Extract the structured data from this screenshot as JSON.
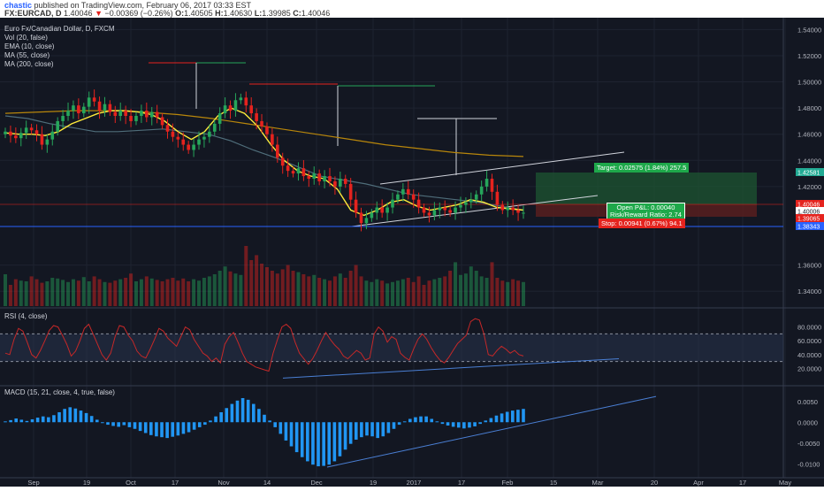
{
  "header": {
    "author": "chastic",
    "published_text": "published on TradingView.com, February 06, 2017 03:33 EST",
    "symbol": "FX:EURCAD, D",
    "last": "1.40046",
    "change": "−0.00369 (−0.26%)",
    "open_label": "O:",
    "open": "1.40505",
    "high_label": "H:",
    "high": "1.40630",
    "low_label": "L:",
    "low": "1.39985",
    "close_label": "C:",
    "close": "1.40046"
  },
  "legend": {
    "title": "Euro Fx/Canadian Dollar, D, FXCM",
    "vol": "Vol (20, false)",
    "ema": "EMA (10, close)",
    "ma55": "MA (55, close)",
    "ma200": "MA (200, close)"
  },
  "rsi_legend": "RSI (4, close)",
  "macd_legend": "MACD (15, 21, close, 4, true, false)",
  "trade_boxes": {
    "target": "Target: 0.02575 (1.84%) 257.5",
    "pnl": "Open P&L: 0.00040",
    "rr": "Risk/Reward Ratio: 2.74",
    "stop": "Stop: 0.00941 (0.67%) 94.1"
  },
  "price_labels": [
    {
      "text": "1.42581",
      "bg": "#22ab94"
    },
    {
      "text": "1.40046",
      "bg": "#e5231e"
    },
    {
      "text": "1.40006",
      "bg": "#ffffff"
    },
    {
      "text": "1.39065",
      "bg": "#e5231e"
    },
    {
      "text": "1.38343",
      "bg": "#2962ff"
    }
  ],
  "time_axis": [
    "Sep",
    "19",
    "Oct",
    "17",
    "Nov",
    "14",
    "Dec",
    "19",
    "2017",
    "17",
    "Feb",
    "15",
    "Mar",
    "20",
    "Apr",
    "17",
    "May"
  ],
  "colors": {
    "background": "#131722",
    "up": "#26a65b",
    "down": "#e5231e",
    "ema": "#ffeb3b",
    "ma55": "#4f6d7a",
    "ma200": "#b8860b",
    "rsi": "#c62828",
    "macd": "#2196f3",
    "trendline": "#d1d4dc"
  },
  "chart_data": [
    {
      "type": "candlestick",
      "title": "Euro Fx/Canadian Dollar, D, FXCM",
      "ylim": [
        1.33,
        1.545
      ],
      "yticks": [
        "1.54000",
        "1.52000",
        "1.50000",
        "1.48000",
        "1.46000",
        "1.44000",
        "1.42000",
        "1.36000",
        "1.34000"
      ],
      "close_approx": [
        1.462,
        1.459,
        1.457,
        1.461,
        1.465,
        1.463,
        1.46,
        1.452,
        1.456,
        1.462,
        1.47,
        1.474,
        1.478,
        1.482,
        1.476,
        1.481,
        1.488,
        1.485,
        1.478,
        1.483,
        1.477,
        1.474,
        1.478,
        1.474,
        1.47,
        1.474,
        1.478,
        1.473,
        1.477,
        1.473,
        1.467,
        1.462,
        1.458,
        1.456,
        1.452,
        1.448,
        1.452,
        1.456,
        1.458,
        1.462,
        1.468,
        1.476,
        1.482,
        1.478,
        1.486,
        1.488,
        1.482,
        1.476,
        1.47,
        1.466,
        1.46,
        1.452,
        1.442,
        1.436,
        1.432,
        1.43,
        1.434,
        1.428,
        1.426,
        1.43,
        1.424,
        1.428,
        1.424,
        1.42,
        1.426,
        1.422,
        1.41,
        1.4,
        1.392,
        1.396,
        1.4,
        1.404,
        1.4,
        1.404,
        1.41,
        1.414,
        1.418,
        1.414,
        1.41,
        1.404,
        1.4,
        1.398,
        1.402,
        1.404,
        1.402,
        1.4,
        1.404,
        1.406,
        1.408,
        1.41,
        1.414,
        1.42,
        1.426,
        1.416,
        1.406,
        1.402,
        1.404,
        1.402,
        1.4,
        1.4
      ],
      "ema10_approx": [
        1.461,
        1.46,
        1.46,
        1.459,
        1.462,
        1.468,
        1.472,
        1.476,
        1.478,
        1.478,
        1.477,
        1.475,
        1.47,
        1.462,
        1.456,
        1.462,
        1.474,
        1.48,
        1.476,
        1.466,
        1.452,
        1.44,
        1.432,
        1.428,
        1.426,
        1.418,
        1.402,
        1.398,
        1.402,
        1.408,
        1.41,
        1.405,
        1.402,
        1.404,
        1.406,
        1.41,
        1.408,
        1.404,
        1.403,
        1.402
      ],
      "ma55_approx": [
        1.474,
        1.472,
        1.468,
        1.465,
        1.462,
        1.462,
        1.463,
        1.464,
        1.462,
        1.46,
        1.455,
        1.448,
        1.442,
        1.435,
        1.428,
        1.425,
        1.422,
        1.418,
        1.414,
        1.412,
        1.41,
        1.408,
        1.405,
        1.402
      ],
      "ma200_approx": [
        1.476,
        1.477,
        1.478,
        1.478,
        1.477,
        1.475,
        1.472,
        1.468,
        1.464,
        1.46,
        1.456,
        1.452,
        1.449,
        1.446,
        1.444,
        1.443
      ],
      "annotations": [
        "Target: 0.02575 (1.84%) 257.5",
        "Open P&L: 0.00040",
        "Risk/Reward Ratio: 2.74",
        "Stop: 0.00941 (0.67%) 94.1"
      ]
    },
    {
      "type": "bar",
      "title": "Vol (20, false)",
      "values_relative": [
        0.45,
        0.3,
        0.38,
        0.36,
        0.35,
        0.42,
        0.38,
        0.33,
        0.35,
        0.4,
        0.39,
        0.37,
        0.34,
        0.38,
        0.36,
        0.41,
        0.35,
        0.42,
        0.38,
        0.34,
        0.33,
        0.36,
        0.38,
        0.4,
        0.46,
        0.35,
        0.38,
        0.42,
        0.39,
        0.37,
        0.35,
        0.38,
        0.4,
        0.36,
        0.39,
        0.35,
        0.38,
        0.36,
        0.4,
        0.42,
        0.45,
        0.5,
        0.56,
        0.49,
        0.46,
        0.44,
        0.85,
        0.65,
        0.72,
        0.6,
        0.55,
        0.5,
        0.46,
        0.52,
        0.58,
        0.5,
        0.48,
        0.45,
        0.42,
        0.44,
        0.4,
        0.38,
        0.36,
        0.42,
        0.46,
        0.4,
        0.5,
        0.58,
        0.42,
        0.36,
        0.34,
        0.38,
        0.36,
        0.32,
        0.34,
        0.36,
        0.38,
        0.4,
        0.34,
        0.42,
        0.3,
        0.36,
        0.38,
        0.4,
        0.42,
        0.5,
        0.62,
        0.44,
        0.46,
        0.56,
        0.5,
        0.42,
        0.4,
        0.62,
        0.4,
        0.36,
        0.34,
        0.38,
        0.36,
        0.34
      ]
    },
    {
      "type": "line",
      "title": "RSI (4, close)",
      "ylim": [
        0,
        100
      ],
      "yticks": [
        "80.0000",
        "60.0000",
        "40.0000",
        "20.0000"
      ],
      "values": [
        42,
        40,
        62,
        78,
        74,
        58,
        40,
        35,
        46,
        60,
        75,
        82,
        80,
        68,
        55,
        38,
        45,
        60,
        78,
        84,
        70,
        55,
        40,
        32,
        42,
        66,
        82,
        80,
        68,
        60,
        45,
        38,
        35,
        48,
        62,
        78,
        74,
        64,
        58,
        52,
        66,
        80,
        76,
        62,
        52,
        42,
        38,
        30,
        35,
        28,
        55,
        66,
        72,
        58,
        42,
        30,
        26,
        22,
        20,
        18,
        16,
        42,
        62,
        80,
        84,
        78,
        58,
        42,
        34,
        26,
        34,
        46,
        60,
        72,
        62,
        54,
        48,
        38,
        34,
        40,
        46,
        42,
        32,
        35,
        70,
        80,
        74,
        58,
        66,
        62,
        42,
        36,
        32,
        48,
        62,
        70,
        62,
        50,
        40,
        32,
        28,
        36,
        46,
        56,
        62,
        68,
        88,
        92,
        90,
        70,
        40,
        38,
        46,
        52,
        48,
        42,
        46,
        40,
        38
      ]
    },
    {
      "type": "bar",
      "title": "MACD (15, 21, close, 4, true, false)",
      "ylim": [
        -0.0125,
        0.0075
      ],
      "yticks": [
        "0.0050",
        "0.0000",
        "-0.0050",
        "-0.0100"
      ],
      "values": [
        0.0002,
        0.0005,
        0.0009,
        0.0006,
        0.0003,
        0.0007,
        0.0011,
        0.0014,
        0.0012,
        0.0017,
        0.0024,
        0.0032,
        0.0036,
        0.0033,
        0.0028,
        0.0022,
        0.0015,
        0.0006,
        -0.0002,
        -0.0006,
        -0.0009,
        -0.0011,
        -0.0007,
        -0.0012,
        -0.0016,
        -0.0021,
        -0.0026,
        -0.0031,
        -0.0034,
        -0.0036,
        -0.0038,
        -0.0035,
        -0.0032,
        -0.0028,
        -0.0024,
        -0.0018,
        -0.0012,
        -0.0006,
        0.0004,
        0.0014,
        0.0024,
        0.0034,
        0.0044,
        0.0052,
        0.0058,
        0.0054,
        0.0044,
        0.0032,
        0.0018,
        0.0004,
        -0.0012,
        -0.0028,
        -0.0044,
        -0.0058,
        -0.0072,
        -0.0084,
        -0.0094,
        -0.0102,
        -0.0106,
        -0.0105,
        -0.0102,
        -0.0094,
        -0.0082,
        -0.0066,
        -0.0052,
        -0.0042,
        -0.0036,
        -0.0032,
        -0.0034,
        -0.0038,
        -0.0034,
        -0.0026,
        -0.0016,
        -0.0006,
        0.0002,
        0.0008,
        0.0012,
        0.0014,
        0.0014,
        0.0008,
        0.0002,
        -0.0004,
        -0.0008,
        -0.0011,
        -0.0013,
        -0.0015,
        -0.0013,
        -0.001,
        -0.0004,
        0.0004,
        0.001,
        0.0016,
        0.0021,
        0.0025,
        0.0028,
        0.003,
        0.0032
      ]
    }
  ]
}
